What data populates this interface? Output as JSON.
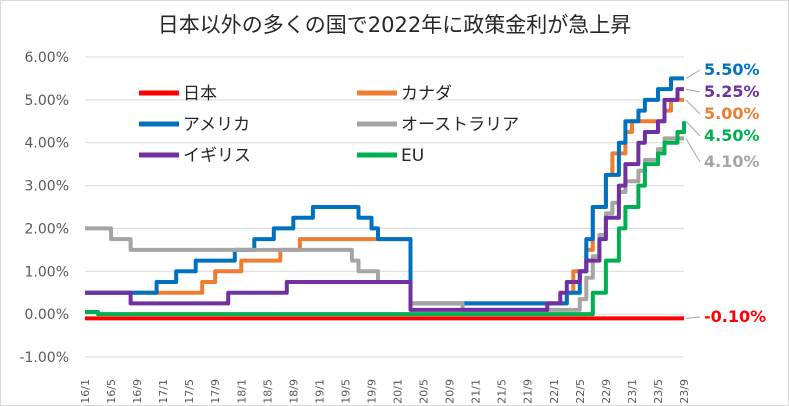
{
  "chart_data": {
    "type": "line",
    "title": "日本以外の多くの国で2022年に政策金利が急上昇",
    "ylim": [
      -1,
      6
    ],
    "yticks": [
      "-1.00%",
      "0.00%",
      "1.00%",
      "2.00%",
      "3.00%",
      "4.00%",
      "5.00%",
      "6.00%"
    ],
    "ytick_values": [
      -1,
      0,
      1,
      2,
      3,
      4,
      5,
      6
    ],
    "xlim": [
      "16/1",
      "23/9"
    ],
    "xticks": [
      "16/1",
      "16/5",
      "16/9",
      "17/1",
      "17/5",
      "17/9",
      "18/1",
      "18/5",
      "18/9",
      "19/1",
      "19/5",
      "19/9",
      "20/1",
      "20/5",
      "20/9",
      "21/1",
      "21/5",
      "21/9",
      "22/1",
      "22/5",
      "22/9",
      "23/1",
      "23/5",
      "23/9"
    ],
    "grid": true,
    "legend_position": "top-left",
    "series": [
      {
        "name": "日本",
        "color": "#ff0000",
        "end_label": "-0.10%",
        "points": [
          [
            "16/1",
            -0.1
          ],
          [
            "23/9",
            -0.1
          ]
        ]
      },
      {
        "name": "カナダ",
        "color": "#ed7d31",
        "end_label": "5.00%",
        "points": [
          [
            "16/1",
            0.5
          ],
          [
            "17/7",
            0.5
          ],
          [
            "17/7",
            0.75
          ],
          [
            "17/9",
            0.75
          ],
          [
            "17/9",
            1.0
          ],
          [
            "18/1",
            1.0
          ],
          [
            "18/1",
            1.25
          ],
          [
            "18/7",
            1.25
          ],
          [
            "18/7",
            1.5
          ],
          [
            "18/10",
            1.5
          ],
          [
            "18/10",
            1.75
          ],
          [
            "20/3",
            1.75
          ],
          [
            "20/3",
            0.25
          ],
          [
            "22/3",
            0.25
          ],
          [
            "22/3",
            0.5
          ],
          [
            "22/4",
            0.5
          ],
          [
            "22/4",
            1.0
          ],
          [
            "22/6",
            1.0
          ],
          [
            "22/6",
            1.5
          ],
          [
            "22/7",
            1.5
          ],
          [
            "22/7",
            2.5
          ],
          [
            "22/9",
            2.5
          ],
          [
            "22/9",
            3.25
          ],
          [
            "22/10",
            3.25
          ],
          [
            "22/10",
            3.75
          ],
          [
            "22/12",
            3.75
          ],
          [
            "22/12",
            4.25
          ],
          [
            "23/1",
            4.25
          ],
          [
            "23/1",
            4.5
          ],
          [
            "23/6",
            4.5
          ],
          [
            "23/6",
            4.75
          ],
          [
            "23/7",
            4.75
          ],
          [
            "23/7",
            5.0
          ],
          [
            "23/9",
            5.0
          ]
        ]
      },
      {
        "name": "アメリカ",
        "color": "#0070c0",
        "end_label": "5.50%",
        "points": [
          [
            "16/1",
            0.5
          ],
          [
            "16/12",
            0.5
          ],
          [
            "16/12",
            0.75
          ],
          [
            "17/3",
            0.75
          ],
          [
            "17/3",
            1.0
          ],
          [
            "17/6",
            1.0
          ],
          [
            "17/6",
            1.25
          ],
          [
            "17/12",
            1.25
          ],
          [
            "17/12",
            1.5
          ],
          [
            "18/3",
            1.5
          ],
          [
            "18/3",
            1.75
          ],
          [
            "18/6",
            1.75
          ],
          [
            "18/6",
            2.0
          ],
          [
            "18/9",
            2.0
          ],
          [
            "18/9",
            2.25
          ],
          [
            "18/12",
            2.25
          ],
          [
            "18/12",
            2.5
          ],
          [
            "19/7",
            2.5
          ],
          [
            "19/7",
            2.25
          ],
          [
            "19/9",
            2.25
          ],
          [
            "19/9",
            2.0
          ],
          [
            "19/10",
            2.0
          ],
          [
            "19/10",
            1.75
          ],
          [
            "20/3",
            1.75
          ],
          [
            "20/3",
            0.25
          ],
          [
            "22/3",
            0.25
          ],
          [
            "22/3",
            0.5
          ],
          [
            "22/5",
            0.5
          ],
          [
            "22/5",
            1.0
          ],
          [
            "22/6",
            1.0
          ],
          [
            "22/6",
            1.75
          ],
          [
            "22/7",
            1.75
          ],
          [
            "22/7",
            2.5
          ],
          [
            "22/9",
            2.5
          ],
          [
            "22/9",
            3.25
          ],
          [
            "22/11",
            3.25
          ],
          [
            "22/11",
            4.0
          ],
          [
            "22/12",
            4.0
          ],
          [
            "22/12",
            4.5
          ],
          [
            "23/2",
            4.5
          ],
          [
            "23/2",
            4.75
          ],
          [
            "23/3",
            4.75
          ],
          [
            "23/3",
            5.0
          ],
          [
            "23/5",
            5.0
          ],
          [
            "23/5",
            5.25
          ],
          [
            "23/7",
            5.25
          ],
          [
            "23/7",
            5.5
          ],
          [
            "23/9",
            5.5
          ]
        ]
      },
      {
        "name": "オーストラリア",
        "color": "#a5a5a5",
        "end_label": "4.10%",
        "points": [
          [
            "16/1",
            2.0
          ],
          [
            "16/5",
            2.0
          ],
          [
            "16/5",
            1.75
          ],
          [
            "16/8",
            1.75
          ],
          [
            "16/8",
            1.5
          ],
          [
            "19/6",
            1.5
          ],
          [
            "19/6",
            1.25
          ],
          [
            "19/7",
            1.25
          ],
          [
            "19/7",
            1.0
          ],
          [
            "19/10",
            1.0
          ],
          [
            "19/10",
            0.75
          ],
          [
            "20/3",
            0.75
          ],
          [
            "20/3",
            0.25
          ],
          [
            "20/11",
            0.25
          ],
          [
            "20/11",
            0.1
          ],
          [
            "22/5",
            0.1
          ],
          [
            "22/5",
            0.35
          ],
          [
            "22/6",
            0.35
          ],
          [
            "22/6",
            0.85
          ],
          [
            "22/7",
            0.85
          ],
          [
            "22/7",
            1.35
          ],
          [
            "22/8",
            1.35
          ],
          [
            "22/8",
            1.85
          ],
          [
            "22/9",
            1.85
          ],
          [
            "22/9",
            2.35
          ],
          [
            "22/10",
            2.35
          ],
          [
            "22/10",
            2.6
          ],
          [
            "22/11",
            2.6
          ],
          [
            "22/11",
            2.85
          ],
          [
            "22/12",
            2.85
          ],
          [
            "22/12",
            3.1
          ],
          [
            "23/2",
            3.1
          ],
          [
            "23/2",
            3.35
          ],
          [
            "23/3",
            3.35
          ],
          [
            "23/3",
            3.6
          ],
          [
            "23/5",
            3.6
          ],
          [
            "23/5",
            3.85
          ],
          [
            "23/6",
            3.85
          ],
          [
            "23/6",
            4.1
          ],
          [
            "23/9",
            4.1
          ]
        ]
      },
      {
        "name": "イギリス",
        "color": "#7030a0",
        "end_label": "5.25%",
        "points": [
          [
            "16/1",
            0.5
          ],
          [
            "16/8",
            0.5
          ],
          [
            "16/8",
            0.25
          ],
          [
            "17/11",
            0.25
          ],
          [
            "17/11",
            0.5
          ],
          [
            "18/8",
            0.5
          ],
          [
            "18/8",
            0.75
          ],
          [
            "20/3",
            0.75
          ],
          [
            "20/3",
            0.1
          ],
          [
            "21/12",
            0.1
          ],
          [
            "21/12",
            0.25
          ],
          [
            "22/2",
            0.25
          ],
          [
            "22/2",
            0.5
          ],
          [
            "22/3",
            0.5
          ],
          [
            "22/3",
            0.75
          ],
          [
            "22/5",
            0.75
          ],
          [
            "22/5",
            1.0
          ],
          [
            "22/6",
            1.0
          ],
          [
            "22/6",
            1.25
          ],
          [
            "22/8",
            1.25
          ],
          [
            "22/8",
            1.75
          ],
          [
            "22/9",
            1.75
          ],
          [
            "22/9",
            2.25
          ],
          [
            "22/11",
            2.25
          ],
          [
            "22/11",
            3.0
          ],
          [
            "22/12",
            3.0
          ],
          [
            "22/12",
            3.5
          ],
          [
            "23/2",
            3.5
          ],
          [
            "23/2",
            4.0
          ],
          [
            "23/3",
            4.0
          ],
          [
            "23/3",
            4.25
          ],
          [
            "23/5",
            4.25
          ],
          [
            "23/5",
            4.5
          ],
          [
            "23/6",
            4.5
          ],
          [
            "23/6",
            5.0
          ],
          [
            "23/8",
            5.0
          ],
          [
            "23/8",
            5.25
          ],
          [
            "23/9",
            5.25
          ]
        ]
      },
      {
        "name": "EU",
        "color": "#00b050",
        "end_label": "4.50%",
        "points": [
          [
            "16/1",
            0.05
          ],
          [
            "16/3",
            0.05
          ],
          [
            "16/3",
            0.0
          ],
          [
            "22/7",
            0.0
          ],
          [
            "22/7",
            0.5
          ],
          [
            "22/9",
            0.5
          ],
          [
            "22/9",
            1.25
          ],
          [
            "22/11",
            1.25
          ],
          [
            "22/11",
            2.0
          ],
          [
            "22/12",
            2.0
          ],
          [
            "22/12",
            2.5
          ],
          [
            "23/2",
            2.5
          ],
          [
            "23/2",
            3.0
          ],
          [
            "23/3",
            3.0
          ],
          [
            "23/3",
            3.5
          ],
          [
            "23/5",
            3.5
          ],
          [
            "23/5",
            3.75
          ],
          [
            "23/6",
            3.75
          ],
          [
            "23/6",
            4.0
          ],
          [
            "23/8",
            4.0
          ],
          [
            "23/8",
            4.25
          ],
          [
            "23/9",
            4.25
          ],
          [
            "23/9",
            4.5
          ]
        ]
      }
    ]
  }
}
